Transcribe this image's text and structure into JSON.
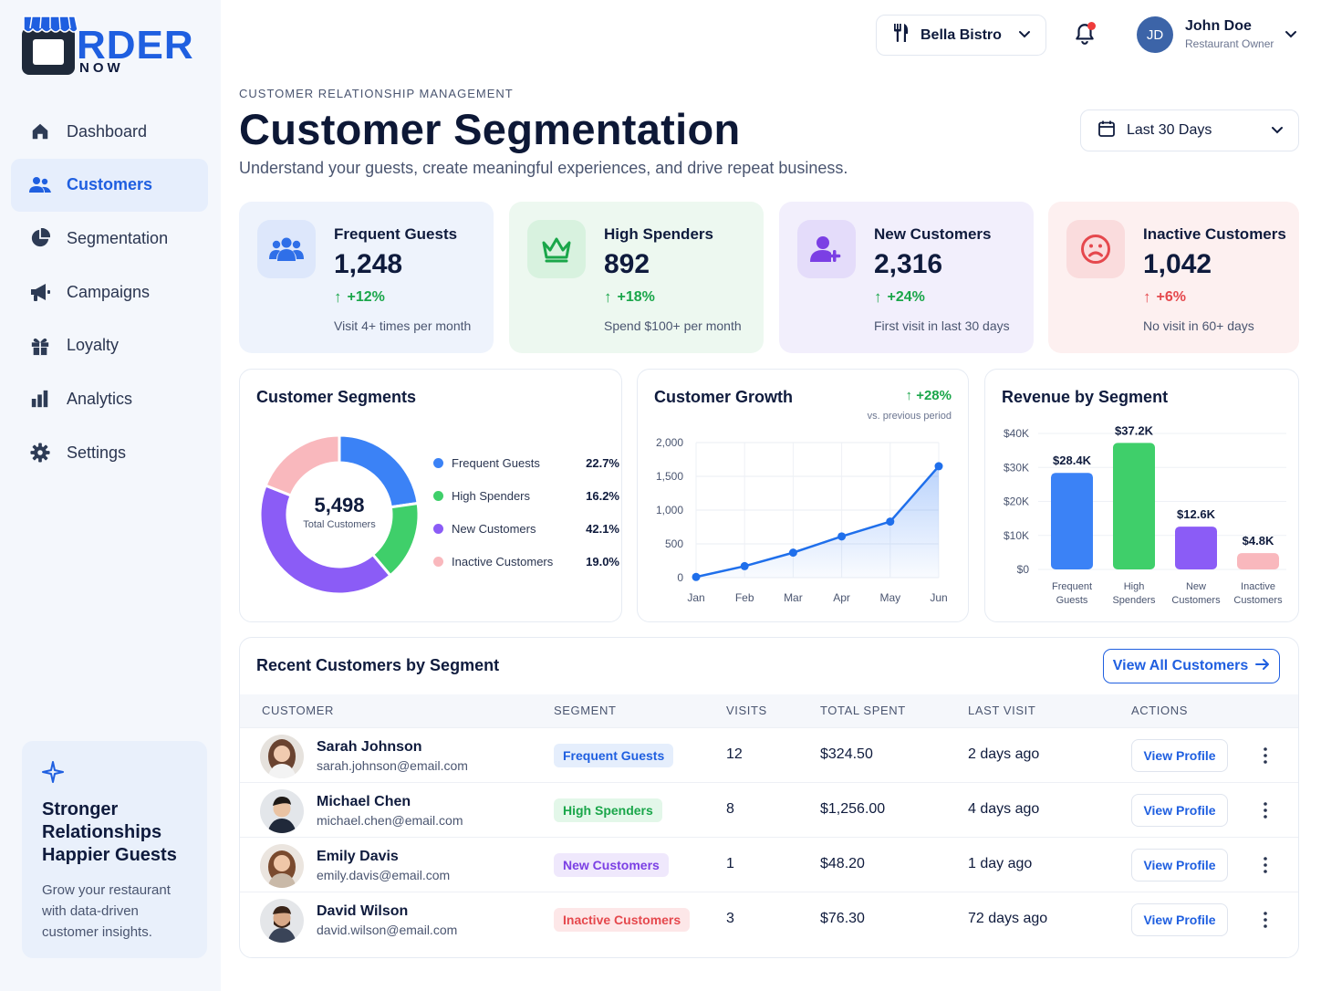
{
  "brand": {
    "logo_word": "RDER",
    "logo_sub": "NOW"
  },
  "sidebar": {
    "items": [
      {
        "label": "Dashboard",
        "icon": "home-icon"
      },
      {
        "label": "Customers",
        "icon": "users-icon",
        "active": true
      },
      {
        "label": "Segmentation",
        "icon": "pie-icon"
      },
      {
        "label": "Campaigns",
        "icon": "megaphone-icon"
      },
      {
        "label": "Loyalty",
        "icon": "gift-icon"
      },
      {
        "label": "Analytics",
        "icon": "bar-chart-icon"
      },
      {
        "label": "Settings",
        "icon": "gear-icon"
      }
    ],
    "promo": {
      "title": "Stronger Relationships Happier Guests",
      "text": "Grow your restaurant with data-driven customer insights."
    }
  },
  "topbar": {
    "restaurant": "Bella Bistro",
    "user_initials": "JD",
    "user_name": "John Doe",
    "user_role": "Restaurant Owner"
  },
  "header": {
    "eyebrow": "CUSTOMER RELATIONSHIP MANAGEMENT",
    "title": "Customer Segmentation",
    "subtitle": "Understand your guests, create meaningful experiences, and drive repeat business.",
    "date_range": "Last 30 Days"
  },
  "kpis": [
    {
      "title": "Frequent Guests",
      "value": "1,248",
      "delta": "+12%",
      "note": "Visit 4+ times per month",
      "color": "#2f6fe8"
    },
    {
      "title": "High Spenders",
      "value": "892",
      "delta": "+18%",
      "note": "Spend $100+ per month",
      "color": "#1aa64a"
    },
    {
      "title": "New Customers",
      "value": "2,316",
      "delta": "+24%",
      "note": "First visit in last 30 days",
      "color": "#7b3fe4"
    },
    {
      "title": "Inactive Customers",
      "value": "1,042",
      "delta": "+6%",
      "note": "No visit in 60+ days",
      "color": "#e5484d"
    }
  ],
  "segments_panel": {
    "title": "Customer Segments",
    "total": "5,498",
    "total_label": "Total Customers"
  },
  "growth_panel": {
    "title": "Customer Growth",
    "delta": "+28%",
    "note": "vs. previous period"
  },
  "revenue_panel": {
    "title": "Revenue by Segment"
  },
  "chart_data": [
    {
      "type": "pie",
      "title": "Customer Segments",
      "categories": [
        "Frequent Guests",
        "High Spenders",
        "New Customers",
        "Inactive Customers"
      ],
      "values": [
        22.7,
        16.2,
        42.1,
        19.0
      ],
      "labels": [
        "22.7%",
        "16.2%",
        "42.1%",
        "19.0%"
      ],
      "colors": [
        "#3b82f6",
        "#3fcf6a",
        "#8b5cf6",
        "#f9b8bd"
      ],
      "legend": "right"
    },
    {
      "type": "line",
      "title": "Customer Growth",
      "x": [
        "Jan",
        "Feb",
        "Mar",
        "Apr",
        "May",
        "Jun"
      ],
      "y": [
        10,
        170,
        370,
        610,
        830,
        1650
      ],
      "yticks": [
        "2,000",
        "1,500",
        "1,000",
        "500",
        "0"
      ],
      "ylim": [
        0,
        2000
      ],
      "grid": true,
      "color": "#1f6feb"
    },
    {
      "type": "bar",
      "title": "Revenue by Segment",
      "categories": [
        "Frequent Guests",
        "High Spenders",
        "New Customers",
        "Inactive Customers"
      ],
      "category_lines": [
        [
          "Frequent",
          "Guests"
        ],
        [
          "High",
          "Spenders"
        ],
        [
          "New",
          "Customers"
        ],
        [
          "Inactive",
          "Customers"
        ]
      ],
      "values": [
        28.4,
        37.2,
        12.6,
        4.8
      ],
      "labels": [
        "$28.4K",
        "$37.2K",
        "$12.6K",
        "$4.8K"
      ],
      "yticks": [
        "$40K",
        "$30K",
        "$20K",
        "$10K",
        "$0"
      ],
      "ylim": [
        0,
        40
      ],
      "colors": [
        "#3b82f6",
        "#3fcf6a",
        "#8b5cf6",
        "#f9b8bd"
      ],
      "grid": true
    }
  ],
  "table": {
    "title": "Recent Customers by Segment",
    "view_all": "View All Customers",
    "headers": [
      "CUSTOMER",
      "SEGMENT",
      "VISITS",
      "TOTAL SPENT",
      "LAST VISIT",
      "ACTIONS"
    ],
    "rows": [
      {
        "name": "Sarah Johnson",
        "email": "sarah.johnson@email.com",
        "segment": "Frequent Guests",
        "seg_color": "#1f5fe0",
        "seg_bg": "#e5eefc",
        "visits": "12",
        "spent": "$324.50",
        "last": "2 days ago",
        "action": "View Profile"
      },
      {
        "name": "Michael Chen",
        "email": "michael.chen@email.com",
        "segment": "High Spenders",
        "seg_color": "#1aa64a",
        "seg_bg": "#e3f7e9",
        "visits": "8",
        "spent": "$1,256.00",
        "last": "4 days ago",
        "action": "View Profile"
      },
      {
        "name": "Emily Davis",
        "email": "emily.davis@email.com",
        "segment": "New Customers",
        "seg_color": "#7b3fe4",
        "seg_bg": "#efe8fc",
        "visits": "1",
        "spent": "$48.20",
        "last": "1 day ago",
        "action": "View Profile"
      },
      {
        "name": "David Wilson",
        "email": "david.wilson@email.com",
        "segment": "Inactive Customers",
        "seg_color": "#e5484d",
        "seg_bg": "#fde7e8",
        "visits": "3",
        "spent": "$76.30",
        "last": "72 days ago",
        "action": "View Profile"
      }
    ]
  }
}
